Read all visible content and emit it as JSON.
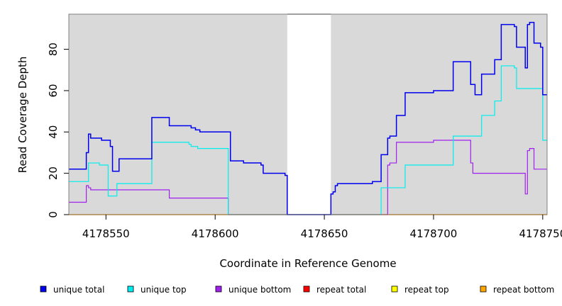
{
  "chart_data": {
    "type": "line",
    "xlabel": "Coordinate in Reference Genome",
    "ylabel": "Read Coverage Depth",
    "xlim": [
      4178533,
      4178752
    ],
    "ylim": [
      0,
      97
    ],
    "x_ticks": [
      4178550,
      4178600,
      4178650,
      4178700,
      4178750
    ],
    "x_tick_labels": [
      "4178550",
      "4178600",
      "4178650",
      "4178700",
      "4178750"
    ],
    "y_ticks": [
      0,
      20,
      40,
      60,
      80
    ],
    "y_tick_labels": [
      "0",
      "20",
      "40",
      "60",
      "80"
    ],
    "grid": false,
    "legend_position": "bottom",
    "background_color": "#d9d9d9",
    "gaps": [
      [
        4178633,
        4178653
      ]
    ],
    "series": [
      {
        "name": "unique total",
        "color": "#0000ee",
        "points": [
          [
            4178533,
            22
          ],
          [
            4178541,
            22
          ],
          [
            4178541,
            30
          ],
          [
            4178542,
            30
          ],
          [
            4178542,
            39
          ],
          [
            4178543,
            39
          ],
          [
            4178543,
            37
          ],
          [
            4178548,
            37
          ],
          [
            4178548,
            36
          ],
          [
            4178552,
            36
          ],
          [
            4178552,
            33
          ],
          [
            4178553,
            33
          ],
          [
            4178553,
            21
          ],
          [
            4178556,
            21
          ],
          [
            4178556,
            27
          ],
          [
            4178571,
            27
          ],
          [
            4178571,
            47
          ],
          [
            4178579,
            47
          ],
          [
            4178579,
            43
          ],
          [
            4178589,
            43
          ],
          [
            4178589,
            42
          ],
          [
            4178591,
            42
          ],
          [
            4178591,
            41
          ],
          [
            4178593,
            41
          ],
          [
            4178593,
            40
          ],
          [
            4178607,
            40
          ],
          [
            4178607,
            26
          ],
          [
            4178613,
            26
          ],
          [
            4178613,
            25
          ],
          [
            4178621,
            25
          ],
          [
            4178621,
            24
          ],
          [
            4178622,
            24
          ],
          [
            4178622,
            20
          ],
          [
            4178632,
            20
          ],
          [
            4178632,
            19
          ],
          [
            4178633,
            19
          ],
          [
            4178633,
            0
          ],
          [
            4178653,
            0
          ],
          [
            4178653,
            10
          ],
          [
            4178654,
            10
          ],
          [
            4178654,
            11
          ],
          [
            4178655,
            11
          ],
          [
            4178655,
            14
          ],
          [
            4178656,
            14
          ],
          [
            4178656,
            15
          ],
          [
            4178672,
            15
          ],
          [
            4178672,
            16
          ],
          [
            4178676,
            16
          ],
          [
            4178676,
            29
          ],
          [
            4178679,
            29
          ],
          [
            4178679,
            37
          ],
          [
            4178680,
            37
          ],
          [
            4178680,
            38
          ],
          [
            4178683,
            38
          ],
          [
            4178683,
            48
          ],
          [
            4178687,
            48
          ],
          [
            4178687,
            59
          ],
          [
            4178700,
            59
          ],
          [
            4178700,
            60
          ],
          [
            4178709,
            60
          ],
          [
            4178709,
            74
          ],
          [
            4178717,
            74
          ],
          [
            4178717,
            63
          ],
          [
            4178719,
            63
          ],
          [
            4178719,
            58
          ],
          [
            4178722,
            58
          ],
          [
            4178722,
            68
          ],
          [
            4178728,
            68
          ],
          [
            4178728,
            75
          ],
          [
            4178731,
            75
          ],
          [
            4178731,
            92
          ],
          [
            4178737,
            92
          ],
          [
            4178737,
            91
          ],
          [
            4178738,
            91
          ],
          [
            4178738,
            81
          ],
          [
            4178742,
            81
          ],
          [
            4178742,
            71
          ],
          [
            4178743,
            71
          ],
          [
            4178743,
            92
          ],
          [
            4178744,
            92
          ],
          [
            4178744,
            93
          ],
          [
            4178746,
            93
          ],
          [
            4178746,
            83
          ],
          [
            4178749,
            83
          ],
          [
            4178749,
            81
          ],
          [
            4178750,
            81
          ],
          [
            4178750,
            58
          ],
          [
            4178752,
            58
          ]
        ]
      },
      {
        "name": "unique top",
        "color": "#00eeee",
        "points": [
          [
            4178533,
            16
          ],
          [
            4178542,
            16
          ],
          [
            4178542,
            25
          ],
          [
            4178547,
            25
          ],
          [
            4178547,
            24
          ],
          [
            4178551,
            24
          ],
          [
            4178551,
            9
          ],
          [
            4178555,
            9
          ],
          [
            4178555,
            15
          ],
          [
            4178571,
            15
          ],
          [
            4178571,
            35
          ],
          [
            4178588,
            35
          ],
          [
            4178588,
            34
          ],
          [
            4178589,
            34
          ],
          [
            4178589,
            33
          ],
          [
            4178592,
            33
          ],
          [
            4178592,
            32
          ],
          [
            4178606,
            32
          ],
          [
            4178606,
            0
          ],
          [
            4178633,
            0
          ],
          [
            4178633,
            0
          ],
          [
            4178676,
            0
          ],
          [
            4178676,
            13
          ],
          [
            4178687,
            13
          ],
          [
            4178687,
            24
          ],
          [
            4178709,
            24
          ],
          [
            4178709,
            38
          ],
          [
            4178722,
            38
          ],
          [
            4178722,
            48
          ],
          [
            4178728,
            48
          ],
          [
            4178728,
            55
          ],
          [
            4178731,
            55
          ],
          [
            4178731,
            72
          ],
          [
            4178737,
            72
          ],
          [
            4178737,
            71
          ],
          [
            4178738,
            71
          ],
          [
            4178738,
            61
          ],
          [
            4178750,
            61
          ],
          [
            4178750,
            36
          ],
          [
            4178752,
            36
          ]
        ]
      },
      {
        "name": "unique bottom",
        "color": "#a020f0",
        "points": [
          [
            4178533,
            6
          ],
          [
            4178541,
            6
          ],
          [
            4178541,
            14
          ],
          [
            4178542,
            14
          ],
          [
            4178542,
            13
          ],
          [
            4178543,
            13
          ],
          [
            4178543,
            12
          ],
          [
            4178579,
            12
          ],
          [
            4178579,
            8
          ],
          [
            4178606,
            8
          ],
          [
            4178606,
            0
          ],
          [
            4178633,
            0
          ],
          [
            4178653,
            0
          ],
          [
            4178679,
            0
          ],
          [
            4178679,
            24
          ],
          [
            4178680,
            24
          ],
          [
            4178680,
            25
          ],
          [
            4178683,
            25
          ],
          [
            4178683,
            35
          ],
          [
            4178700,
            35
          ],
          [
            4178700,
            36
          ],
          [
            4178717,
            36
          ],
          [
            4178717,
            25
          ],
          [
            4178718,
            25
          ],
          [
            4178718,
            20
          ],
          [
            4178742,
            20
          ],
          [
            4178742,
            10
          ],
          [
            4178743,
            10
          ],
          [
            4178743,
            31
          ],
          [
            4178744,
            31
          ],
          [
            4178744,
            32
          ],
          [
            4178746,
            32
          ],
          [
            4178746,
            22
          ],
          [
            4178752,
            22
          ]
        ]
      },
      {
        "name": "repeat total",
        "color": "#ff0000",
        "points": [
          [
            4178533,
            0
          ],
          [
            4178752,
            0
          ]
        ]
      },
      {
        "name": "repeat top",
        "color": "#ffff00",
        "points": [
          [
            4178533,
            0
          ],
          [
            4178752,
            0
          ]
        ]
      },
      {
        "name": "repeat bottom",
        "color": "#ffa500",
        "points": [
          [
            4178533,
            0
          ],
          [
            4178752,
            0
          ]
        ]
      }
    ]
  }
}
